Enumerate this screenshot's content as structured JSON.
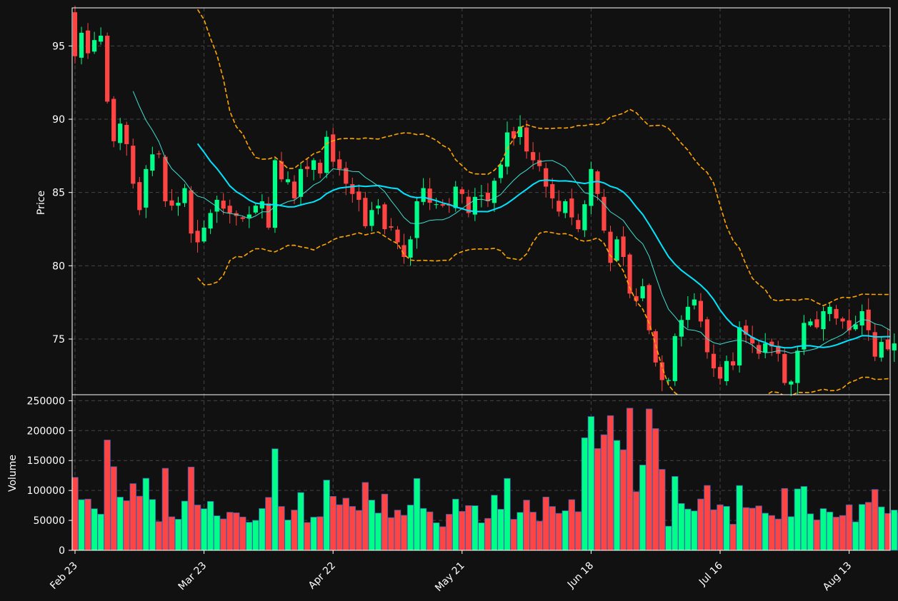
{
  "chart_data": [
    {
      "type": "candlestick",
      "panel": "price",
      "ylabel": "Price",
      "ylim": [
        71.2,
        97.6
      ],
      "yticks": [
        75,
        80,
        85,
        90,
        95
      ],
      "x_tick_labels": [
        "Feb 23",
        "Mar 23",
        "Apr 22",
        "May 21",
        "Jun 18",
        "Jul 16",
        "Aug 13"
      ],
      "x_tick_index": [
        0,
        20,
        40,
        60,
        80,
        100,
        120
      ],
      "grid": true,
      "colors": {
        "up": "#00ff88",
        "down": "#ff4444",
        "wick_up": "#00ff88",
        "wick_down": "#ff4444",
        "ma_fast": "#3ee0d0",
        "ma_slow": "#00e5ff",
        "band": "#ffa500",
        "grid": "#444444",
        "axis": "#ffffff",
        "background": "#111111"
      },
      "series": [
        {
          "name": "OHLC",
          "close": [
            94.3,
            95.9,
            94.5,
            95.4,
            95.7,
            91.2,
            88.5,
            89.7,
            88.3,
            85.6,
            83.8,
            86.6,
            87.6,
            87.6,
            84.4,
            84.1,
            84.3,
            85.3,
            82.2,
            81.6,
            82.6,
            83.6,
            84.5,
            83.9,
            83.6,
            83.4,
            83.2,
            83.5,
            84.1,
            84.4,
            82.6,
            87.2,
            85.9,
            85.9,
            84.6,
            86.6,
            86.6,
            87.2,
            86.3,
            88.8,
            87.1,
            86.6,
            85.6,
            84.9,
            84.5,
            82.7,
            83.8,
            84.1,
            82.5,
            82.6,
            81.6,
            80.6,
            81.8,
            84.4,
            85.3,
            84.3,
            84.2,
            84.1,
            84.1,
            85.4,
            84.9,
            83.6,
            84.7,
            84.8,
            84.4,
            85.8,
            86.9,
            89.1,
            88.7,
            89.5,
            87.8,
            87.2,
            86.8,
            85.4,
            84.6,
            83.7,
            84.4,
            83.3,
            82.5,
            84.2,
            86.6,
            84.9,
            82.4,
            80.2,
            81.8,
            80.6,
            78.1,
            77.6,
            78.6,
            75.6,
            73.4,
            72.2,
            72.2,
            75.2,
            76.3,
            77.2,
            77.7,
            76.2,
            74.1,
            73.0,
            72.3,
            73.5,
            73.2,
            75.8,
            75.3,
            74.7,
            74.0,
            74.7,
            74.5,
            74.0,
            72.0,
            72.1,
            74.2,
            76.1,
            76.2,
            75.8,
            76.9,
            77.2,
            76.4,
            76.2,
            75.6,
            76.0,
            76.9,
            75.6,
            73.8,
            74.8,
            74.3,
            74.7,
            74.1,
            75.9,
            75.5,
            76.3
          ]
        }
      ]
    },
    {
      "type": "bar",
      "panel": "volume",
      "ylabel": "Volume",
      "ylim": [
        0,
        260000
      ],
      "yticks": [
        0,
        50000,
        100000,
        150000,
        200000,
        250000
      ],
      "ytick_labels": [
        "0",
        "50000",
        "100000",
        "150000",
        "200000",
        "250000"
      ],
      "grid": true
    }
  ]
}
